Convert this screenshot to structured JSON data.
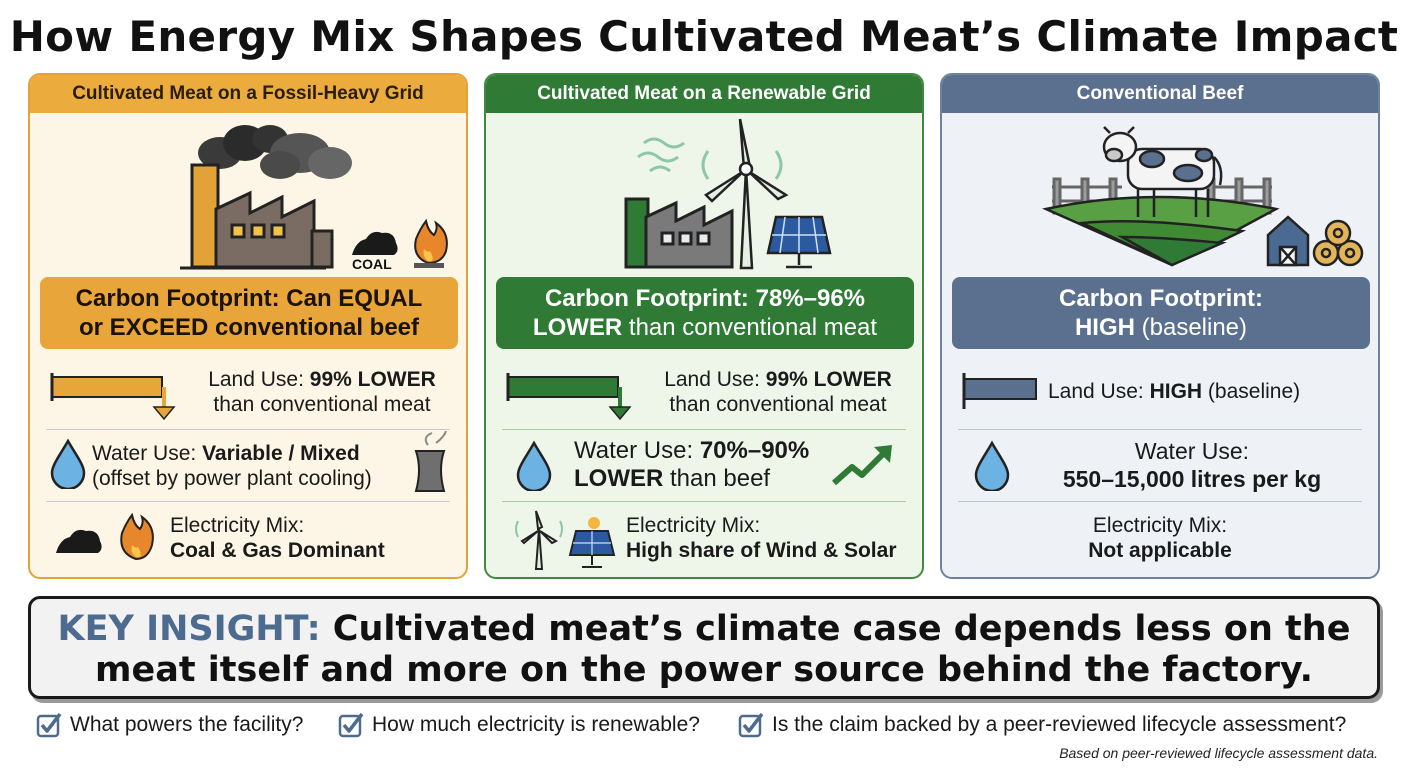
{
  "title": "How Energy Mix Shapes Cultivated Meat’s Climate Impact",
  "cards": [
    {
      "header": "Cultivated Meat on a Fossil-Heavy Grid",
      "coal_label": "COAL",
      "footprint_line1": "Carbon Footprint: Can EQUAL",
      "footprint_line2": "or EXCEED conventional beef",
      "land_prefix": "Land Use: ",
      "land_value": "99% LOWER",
      "land_suffix": "than conventional meat",
      "water_prefix": "Water Use: ",
      "water_value": "Variable / Mixed",
      "water_suffix": "(offset by power plant cooling)",
      "elec_label": "Electricity Mix:",
      "elec_value": "Coal & Gas Dominant"
    },
    {
      "header": "Cultivated Meat on a Renewable Grid",
      "footprint_line1": "Carbon Footprint: 78%–96%",
      "footprint_line2_bold": "LOWER",
      "footprint_line2_rest": " than conventional meat",
      "land_prefix": "Land Use: ",
      "land_value": "99% LOWER",
      "land_suffix": "than conventional meat",
      "water_prefix": "Water Use: ",
      "water_value": "70%–90%",
      "water_suffix_bold": "LOWER",
      "water_suffix_rest": " than beef",
      "elec_label": "Electricity Mix:",
      "elec_value": "High share of Wind & Solar"
    },
    {
      "header": "Conventional Beef",
      "footprint_line1": "Carbon Footprint:",
      "footprint_line2_bold": "HIGH",
      "footprint_line2_rest": " (baseline)",
      "land_prefix": "Land Use: ",
      "land_value": "HIGH",
      "land_suffix": " (baseline)",
      "water_label": "Water Use:",
      "water_value": "550–15,000 litres per kg",
      "elec_label": "Electricity Mix:",
      "elec_value": "Not applicable"
    }
  ],
  "insight": {
    "key": "KEY INSIGHT:",
    "line1_rest": " Cultivated meat’s climate case depends less on the",
    "line2": "meat itself and more on the power source behind the factory."
  },
  "checklist": [
    "What powers the facility?",
    "How much electricity is renewable?",
    "Is the claim backed by a peer-reviewed lifecycle assessment?"
  ],
  "source_note": "Based on peer-reviewed lifecycle assessment data.",
  "colors": {
    "fossil_accent": "#e8a539",
    "renewable_accent": "#2f7b35",
    "beef_accent": "#5b6f8f",
    "insight_key": "#4d6a8f"
  },
  "icons": [
    "factory-icon",
    "smoke-icon",
    "coal-icon",
    "flame-icon",
    "wind-turbine-icon",
    "solar-panel-icon",
    "cow-icon",
    "barn-icon",
    "hay-bale-icon",
    "water-drop-icon",
    "cooling-tower-icon",
    "trend-up-icon",
    "down-arrow-icon",
    "checkbox-icon"
  ]
}
